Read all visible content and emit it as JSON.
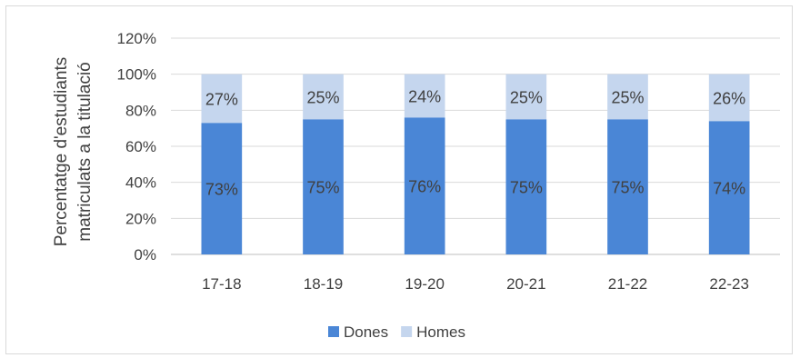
{
  "chart_data": {
    "type": "bar",
    "stacked": true,
    "title": "",
    "xlabel": "",
    "ylabel": [
      "Percentatge d'estudiants",
      "matriculats a la titulació"
    ],
    "categories": [
      "17-18",
      "18-19",
      "19-20",
      "20-21",
      "21-22",
      "22-23"
    ],
    "series": [
      {
        "name": "Dones",
        "values": [
          73,
          75,
          76,
          75,
          75,
          74
        ],
        "labels": [
          "73%",
          "75%",
          "76%",
          "75%",
          "75%",
          "74%"
        ],
        "color": "#4a86d6"
      },
      {
        "name": "Homes",
        "values": [
          27,
          25,
          24,
          25,
          25,
          26
        ],
        "labels": [
          "27%",
          "25%",
          "24%",
          "25%",
          "25%",
          "26%"
        ],
        "color": "#c5d6ee"
      }
    ],
    "ylim": [
      0,
      120
    ],
    "yticks": [
      0,
      20,
      40,
      60,
      80,
      100,
      120
    ],
    "ytick_labels": [
      "0%",
      "20%",
      "40%",
      "60%",
      "80%",
      "100%",
      "120%"
    ],
    "grid": true,
    "legend_position": "bottom"
  }
}
